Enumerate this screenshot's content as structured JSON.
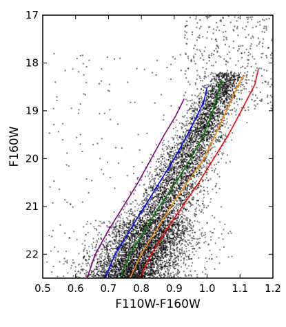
{
  "chart_data": {
    "type": "scatter",
    "title": "",
    "xlabel": "F110W-F160W",
    "ylabel": "F160W",
    "xlim": [
      0.5,
      1.2
    ],
    "ylim": [
      22.5,
      17.0
    ],
    "y_inverted": true,
    "grid": false,
    "legend": "none",
    "xticks": [
      "0.5",
      "0.6",
      "0.7",
      "0.8",
      "0.9",
      "1.0",
      "1.1",
      "1.2"
    ],
    "yticks": [
      "17",
      "18",
      "19",
      "20",
      "21",
      "22"
    ],
    "scatter_style": {
      "color": "#000000",
      "alpha": 0.5,
      "description": "dense cloud of stars along a diagonal red-giant branch"
    },
    "series": [
      {
        "color": "#800080",
        "x": [
          0.635,
          0.66,
          0.7,
          0.745,
          0.79,
          0.83,
          0.87,
          0.905,
          0.93
        ],
        "y": [
          22.5,
          22.0,
          21.5,
          21.0,
          20.5,
          20.0,
          19.5,
          19.1,
          18.75
        ]
      },
      {
        "color": "#0000ff",
        "x": [
          0.69,
          0.72,
          0.765,
          0.81,
          0.855,
          0.9,
          0.94,
          0.97,
          0.99,
          1.0
        ],
        "y": [
          22.5,
          22.0,
          21.5,
          21.0,
          20.5,
          20.0,
          19.5,
          19.1,
          18.8,
          18.5
        ]
      },
      {
        "color": "#008000",
        "x": [
          0.735,
          0.765,
          0.81,
          0.855,
          0.905,
          0.95,
          0.99,
          1.015,
          1.03,
          1.045
        ],
        "y": [
          22.5,
          22.0,
          21.5,
          21.0,
          20.5,
          20.0,
          19.5,
          19.05,
          18.7,
          18.35
        ]
      },
      {
        "color": "#ff8c00",
        "x": [
          0.765,
          0.8,
          0.845,
          0.89,
          0.94,
          0.99,
          1.025,
          1.055,
          1.085,
          1.11
        ],
        "y": [
          22.5,
          22.0,
          21.5,
          21.0,
          20.5,
          20.0,
          19.5,
          19.05,
          18.6,
          18.25
        ]
      },
      {
        "color": "#ff0000",
        "x": [
          0.795,
          0.83,
          0.875,
          0.925,
          0.975,
          1.02,
          1.065,
          1.1,
          1.145,
          1.15,
          1.155
        ],
        "y": [
          22.5,
          22.0,
          21.5,
          21.0,
          20.5,
          20.0,
          19.5,
          19.05,
          18.45,
          18.3,
          18.15
        ]
      }
    ]
  }
}
